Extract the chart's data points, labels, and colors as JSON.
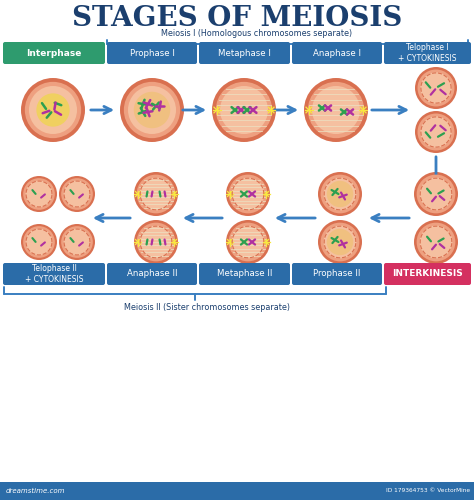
{
  "title": "STAGES OF MEIOSIS",
  "title_color": "#1b3f6e",
  "bg_color": "#ffffff",
  "meiosis1_label": "Meiosis I (Homologous chromosomes separate)",
  "meiosis2_label": "Meiosis II (Sister chromosomes separate)",
  "row1_labels": [
    "Interphase",
    "Prophase I",
    "Metaphase I",
    "Anaphase I",
    "Telophase I\n+ CYTOKINESIS"
  ],
  "row2_labels": [
    "Telophase II\n+ CYTOKINESIS",
    "Anaphase II",
    "Metaphase II",
    "Prophase II",
    "INTERKINESIS"
  ],
  "label_bg_green": "#2e9b6e",
  "label_bg_blue": "#2b6ca8",
  "label_bg_pink": "#d43060",
  "label_text_color": "#ffffff",
  "cell_rim_color": "#d97050",
  "cell_mid_color": "#eea080",
  "cell_inner_color": "#f5c0a0",
  "nucleus_yellow": "#f0d060",
  "nucleus_tan": "#f0c080",
  "spindle_color": "#ecdfc0",
  "star_color": "#f8e840",
  "chrom_green": "#2ca050",
  "chrom_purple": "#b030a0",
  "arrow_color": "#3a7fc1",
  "brace_color": "#3a7fc1",
  "footer_bar_color": "#2b6ca8",
  "footer_text": "dreamstime.com",
  "footer_id": "ID 179364753 © VectorMine"
}
